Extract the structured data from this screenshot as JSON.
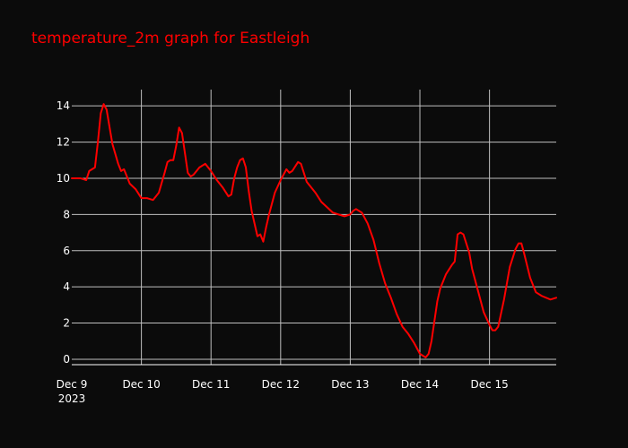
{
  "chart_data": {
    "type": "line",
    "title": "temperature_2m graph for Eastleigh",
    "xlabel": "",
    "ylabel": "",
    "grid": true,
    "legend": "none",
    "colors": {
      "background": "#0b0b0b",
      "grid": "#bfbfbf",
      "line": "#ff0000",
      "text": "#ffffff",
      "title": "#ff0000"
    },
    "xlim": [
      "2023-12-09 00:00",
      "2023-12-15 23:00"
    ],
    "ylim": [
      -0.3,
      14.9
    ],
    "x_ticks": [
      {
        "value": "2023-12-09",
        "label": "Dec 9",
        "sublabel": "2023"
      },
      {
        "value": "2023-12-10",
        "label": "Dec 10"
      },
      {
        "value": "2023-12-11",
        "label": "Dec 11"
      },
      {
        "value": "2023-12-12",
        "label": "Dec 12"
      },
      {
        "value": "2023-12-13",
        "label": "Dec 13"
      },
      {
        "value": "2023-12-14",
        "label": "Dec 14"
      },
      {
        "value": "2023-12-15",
        "label": "Dec 15"
      }
    ],
    "y_ticks": [
      {
        "value": 0,
        "label": "0"
      },
      {
        "value": 2,
        "label": "2"
      },
      {
        "value": 4,
        "label": "4"
      },
      {
        "value": 6,
        "label": "6"
      },
      {
        "value": 8,
        "label": "8"
      },
      {
        "value": 10,
        "label": "10"
      },
      {
        "value": 12,
        "label": "12"
      },
      {
        "value": 14,
        "label": "14"
      }
    ],
    "series": [
      {
        "color": "#ff0000",
        "points": [
          {
            "x": "2023-12-09 00:00",
            "y": 10.0
          },
          {
            "x": "2023-12-09 03:00",
            "y": 10.0
          },
          {
            "x": "2023-12-09 05:00",
            "y": 9.9
          },
          {
            "x": "2023-12-09 06:00",
            "y": 10.4
          },
          {
            "x": "2023-12-09 08:00",
            "y": 10.6
          },
          {
            "x": "2023-12-09 09:00",
            "y": 12.0
          },
          {
            "x": "2023-12-09 10:00",
            "y": 13.6
          },
          {
            "x": "2023-12-09 11:00",
            "y": 14.1
          },
          {
            "x": "2023-12-09 12:00",
            "y": 13.8
          },
          {
            "x": "2023-12-09 14:00",
            "y": 11.9
          },
          {
            "x": "2023-12-09 16:00",
            "y": 10.8
          },
          {
            "x": "2023-12-09 17:00",
            "y": 10.4
          },
          {
            "x": "2023-12-09 18:00",
            "y": 10.5
          },
          {
            "x": "2023-12-09 20:00",
            "y": 9.7
          },
          {
            "x": "2023-12-09 22:00",
            "y": 9.4
          },
          {
            "x": "2023-12-10 00:00",
            "y": 8.9
          },
          {
            "x": "2023-12-10 02:00",
            "y": 8.9
          },
          {
            "x": "2023-12-10 04:00",
            "y": 8.8
          },
          {
            "x": "2023-12-10 06:00",
            "y": 9.2
          },
          {
            "x": "2023-12-10 08:00",
            "y": 10.3
          },
          {
            "x": "2023-12-10 09:00",
            "y": 10.9
          },
          {
            "x": "2023-12-10 10:00",
            "y": 11.0
          },
          {
            "x": "2023-12-10 11:00",
            "y": 11.0
          },
          {
            "x": "2023-12-10 12:00",
            "y": 11.8
          },
          {
            "x": "2023-12-10 13:00",
            "y": 12.8
          },
          {
            "x": "2023-12-10 14:00",
            "y": 12.5
          },
          {
            "x": "2023-12-10 16:00",
            "y": 10.3
          },
          {
            "x": "2023-12-10 17:00",
            "y": 10.1
          },
          {
            "x": "2023-12-10 18:00",
            "y": 10.2
          },
          {
            "x": "2023-12-10 20:00",
            "y": 10.6
          },
          {
            "x": "2023-12-10 22:00",
            "y": 10.8
          },
          {
            "x": "2023-12-11 00:00",
            "y": 10.4
          },
          {
            "x": "2023-12-11 02:00",
            "y": 9.9
          },
          {
            "x": "2023-12-11 04:00",
            "y": 9.5
          },
          {
            "x": "2023-12-11 06:00",
            "y": 9.0
          },
          {
            "x": "2023-12-11 07:00",
            "y": 9.1
          },
          {
            "x": "2023-12-11 08:00",
            "y": 10.0
          },
          {
            "x": "2023-12-11 09:00",
            "y": 10.6
          },
          {
            "x": "2023-12-11 10:00",
            "y": 11.0
          },
          {
            "x": "2023-12-11 11:00",
            "y": 11.1
          },
          {
            "x": "2023-12-11 12:00",
            "y": 10.6
          },
          {
            "x": "2023-12-11 13:00",
            "y": 9.3
          },
          {
            "x": "2023-12-11 14:00",
            "y": 8.2
          },
          {
            "x": "2023-12-11 16:00",
            "y": 6.8
          },
          {
            "x": "2023-12-11 17:00",
            "y": 6.9
          },
          {
            "x": "2023-12-11 18:00",
            "y": 6.5
          },
          {
            "x": "2023-12-11 19:00",
            "y": 7.3
          },
          {
            "x": "2023-12-11 20:00",
            "y": 8.0
          },
          {
            "x": "2023-12-11 22:00",
            "y": 9.2
          },
          {
            "x": "2023-12-12 00:00",
            "y": 9.9
          },
          {
            "x": "2023-12-12 02:00",
            "y": 10.5
          },
          {
            "x": "2023-12-12 03:00",
            "y": 10.3
          },
          {
            "x": "2023-12-12 04:00",
            "y": 10.4
          },
          {
            "x": "2023-12-12 06:00",
            "y": 10.9
          },
          {
            "x": "2023-12-12 07:00",
            "y": 10.8
          },
          {
            "x": "2023-12-12 09:00",
            "y": 9.8
          },
          {
            "x": "2023-12-12 10:00",
            "y": 9.6
          },
          {
            "x": "2023-12-12 12:00",
            "y": 9.2
          },
          {
            "x": "2023-12-12 14:00",
            "y": 8.7
          },
          {
            "x": "2023-12-12 16:00",
            "y": 8.4
          },
          {
            "x": "2023-12-12 18:00",
            "y": 8.1
          },
          {
            "x": "2023-12-12 20:00",
            "y": 8.0
          },
          {
            "x": "2023-12-12 22:00",
            "y": 7.9
          },
          {
            "x": "2023-12-13 00:00",
            "y": 8.0
          },
          {
            "x": "2023-12-13 01:00",
            "y": 8.2
          },
          {
            "x": "2023-12-13 02:00",
            "y": 8.3
          },
          {
            "x": "2023-12-13 04:00",
            "y": 8.1
          },
          {
            "x": "2023-12-13 06:00",
            "y": 7.5
          },
          {
            "x": "2023-12-13 08:00",
            "y": 6.6
          },
          {
            "x": "2023-12-13 10:00",
            "y": 5.3
          },
          {
            "x": "2023-12-13 12:00",
            "y": 4.2
          },
          {
            "x": "2023-12-13 14:00",
            "y": 3.4
          },
          {
            "x": "2023-12-13 16:00",
            "y": 2.5
          },
          {
            "x": "2023-12-13 18:00",
            "y": 1.8
          },
          {
            "x": "2023-12-13 20:00",
            "y": 1.4
          },
          {
            "x": "2023-12-13 22:00",
            "y": 0.9
          },
          {
            "x": "2023-12-14 00:00",
            "y": 0.3
          },
          {
            "x": "2023-12-14 02:00",
            "y": 0.1
          },
          {
            "x": "2023-12-14 03:00",
            "y": 0.3
          },
          {
            "x": "2023-12-14 04:00",
            "y": 1.0
          },
          {
            "x": "2023-12-14 05:00",
            "y": 2.1
          },
          {
            "x": "2023-12-14 06:00",
            "y": 3.2
          },
          {
            "x": "2023-12-14 07:00",
            "y": 3.9
          },
          {
            "x": "2023-12-14 09:00",
            "y": 4.7
          },
          {
            "x": "2023-12-14 11:00",
            "y": 5.2
          },
          {
            "x": "2023-12-14 12:00",
            "y": 5.4
          },
          {
            "x": "2023-12-14 13:00",
            "y": 6.9
          },
          {
            "x": "2023-12-14 14:00",
            "y": 7.0
          },
          {
            "x": "2023-12-14 15:00",
            "y": 6.9
          },
          {
            "x": "2023-12-14 17:00",
            "y": 5.9
          },
          {
            "x": "2023-12-14 18:00",
            "y": 5.0
          },
          {
            "x": "2023-12-14 20:00",
            "y": 3.8
          },
          {
            "x": "2023-12-14 22:00",
            "y": 2.6
          },
          {
            "x": "2023-12-15 00:00",
            "y": 1.9
          },
          {
            "x": "2023-12-15 01:00",
            "y": 1.6
          },
          {
            "x": "2023-12-15 02:00",
            "y": 1.6
          },
          {
            "x": "2023-12-15 03:00",
            "y": 1.8
          },
          {
            "x": "2023-12-15 05:00",
            "y": 3.3
          },
          {
            "x": "2023-12-15 07:00",
            "y": 5.1
          },
          {
            "x": "2023-12-15 09:00",
            "y": 6.1
          },
          {
            "x": "2023-12-15 10:00",
            "y": 6.4
          },
          {
            "x": "2023-12-15 11:00",
            "y": 6.4
          },
          {
            "x": "2023-12-15 12:00",
            "y": 5.8
          },
          {
            "x": "2023-12-15 14:00",
            "y": 4.5
          },
          {
            "x": "2023-12-15 16:00",
            "y": 3.7
          },
          {
            "x": "2023-12-15 18:00",
            "y": 3.5
          },
          {
            "x": "2023-12-15 21:00",
            "y": 3.3
          },
          {
            "x": "2023-12-15 23:00",
            "y": 3.4
          }
        ]
      }
    ]
  }
}
